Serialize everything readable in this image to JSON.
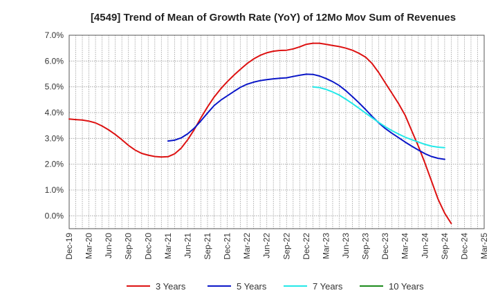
{
  "chart_data": {
    "type": "line",
    "title": "[4549]  Trend of Mean of Growth Rate (YoY) of 12Mo Mov Sum of Revenues",
    "xlabel": "",
    "ylabel": "",
    "ylim": [
      -0.5,
      7.0
    ],
    "yticks": [
      0.0,
      1.0,
      2.0,
      3.0,
      4.0,
      5.0,
      6.0,
      7.0
    ],
    "ytick_labels": [
      "0.0%",
      "1.0%",
      "2.0%",
      "3.0%",
      "4.0%",
      "5.0%",
      "6.0%",
      "7.0%"
    ],
    "x_range": [
      0,
      63
    ],
    "x_tick_positions": [
      0,
      3,
      6,
      9,
      12,
      15,
      18,
      21,
      24,
      27,
      30,
      33,
      36,
      39,
      42,
      45,
      48,
      51,
      54,
      57,
      60,
      63
    ],
    "x_tick_labels": [
      "Dec-19",
      "Mar-20",
      "Jun-20",
      "Sep-20",
      "Dec-20",
      "Mar-21",
      "Jun-21",
      "Sep-21",
      "Dec-21",
      "Mar-22",
      "Jun-22",
      "Sep-22",
      "Dec-22",
      "Mar-23",
      "Jun-23",
      "Sep-23",
      "Dec-23",
      "Mar-24",
      "Jun-24",
      "Sep-24",
      "Dec-24",
      "Mar-25"
    ],
    "grid": true,
    "legend_position": "bottom",
    "series": [
      {
        "name": "3 Years",
        "color": "#dd1111",
        "points": [
          [
            0,
            3.75
          ],
          [
            1,
            3.73
          ],
          [
            2,
            3.71
          ],
          [
            3,
            3.67
          ],
          [
            4,
            3.6
          ],
          [
            5,
            3.48
          ],
          [
            6,
            3.33
          ],
          [
            7,
            3.15
          ],
          [
            8,
            2.95
          ],
          [
            9,
            2.73
          ],
          [
            10,
            2.55
          ],
          [
            11,
            2.42
          ],
          [
            12,
            2.35
          ],
          [
            13,
            2.3
          ],
          [
            14,
            2.28
          ],
          [
            15,
            2.29
          ],
          [
            16,
            2.4
          ],
          [
            17,
            2.62
          ],
          [
            18,
            2.95
          ],
          [
            19,
            3.35
          ],
          [
            20,
            3.8
          ],
          [
            21,
            4.22
          ],
          [
            22,
            4.6
          ],
          [
            23,
            4.92
          ],
          [
            24,
            5.2
          ],
          [
            25,
            5.45
          ],
          [
            26,
            5.68
          ],
          [
            27,
            5.9
          ],
          [
            28,
            6.08
          ],
          [
            29,
            6.22
          ],
          [
            30,
            6.32
          ],
          [
            31,
            6.38
          ],
          [
            32,
            6.41
          ],
          [
            33,
            6.42
          ],
          [
            34,
            6.47
          ],
          [
            35,
            6.55
          ],
          [
            36,
            6.65
          ],
          [
            37,
            6.69
          ],
          [
            38,
            6.69
          ],
          [
            39,
            6.65
          ],
          [
            40,
            6.6
          ],
          [
            41,
            6.56
          ],
          [
            42,
            6.5
          ],
          [
            43,
            6.42
          ],
          [
            44,
            6.3
          ],
          [
            45,
            6.15
          ],
          [
            46,
            5.9
          ],
          [
            47,
            5.55
          ],
          [
            48,
            5.15
          ],
          [
            49,
            4.75
          ],
          [
            50,
            4.35
          ],
          [
            51,
            3.9
          ],
          [
            52,
            3.3
          ],
          [
            53,
            2.7
          ],
          [
            54,
            2.05
          ],
          [
            55,
            1.35
          ],
          [
            56,
            0.65
          ],
          [
            57,
            0.1
          ],
          [
            58,
            -0.3
          ]
        ]
      },
      {
        "name": "5 Years",
        "color": "#0a16c8",
        "points": [
          [
            15,
            2.9
          ],
          [
            16,
            2.93
          ],
          [
            17,
            3.02
          ],
          [
            18,
            3.18
          ],
          [
            19,
            3.4
          ],
          [
            20,
            3.68
          ],
          [
            21,
            3.98
          ],
          [
            22,
            4.27
          ],
          [
            23,
            4.48
          ],
          [
            24,
            4.65
          ],
          [
            25,
            4.82
          ],
          [
            26,
            4.98
          ],
          [
            27,
            5.1
          ],
          [
            28,
            5.18
          ],
          [
            29,
            5.24
          ],
          [
            30,
            5.28
          ],
          [
            31,
            5.31
          ],
          [
            32,
            5.33
          ],
          [
            33,
            5.35
          ],
          [
            34,
            5.4
          ],
          [
            35,
            5.45
          ],
          [
            36,
            5.49
          ],
          [
            37,
            5.48
          ],
          [
            38,
            5.42
          ],
          [
            39,
            5.32
          ],
          [
            40,
            5.2
          ],
          [
            41,
            5.05
          ],
          [
            42,
            4.85
          ],
          [
            43,
            4.62
          ],
          [
            44,
            4.38
          ],
          [
            45,
            4.12
          ],
          [
            46,
            3.85
          ],
          [
            47,
            3.6
          ],
          [
            48,
            3.38
          ],
          [
            49,
            3.2
          ],
          [
            50,
            3.03
          ],
          [
            51,
            2.86
          ],
          [
            52,
            2.7
          ],
          [
            53,
            2.55
          ],
          [
            54,
            2.41
          ],
          [
            55,
            2.3
          ],
          [
            56,
            2.23
          ],
          [
            57,
            2.19
          ]
        ]
      },
      {
        "name": "7 Years",
        "color": "#22e8e8",
        "points": [
          [
            37,
            5.0
          ],
          [
            38,
            4.97
          ],
          [
            39,
            4.9
          ],
          [
            40,
            4.8
          ],
          [
            41,
            4.68
          ],
          [
            42,
            4.52
          ],
          [
            43,
            4.35
          ],
          [
            44,
            4.17
          ],
          [
            45,
            3.98
          ],
          [
            46,
            3.8
          ],
          [
            47,
            3.62
          ],
          [
            48,
            3.45
          ],
          [
            49,
            3.3
          ],
          [
            50,
            3.17
          ],
          [
            51,
            3.05
          ],
          [
            52,
            2.95
          ],
          [
            53,
            2.86
          ],
          [
            54,
            2.77
          ],
          [
            55,
            2.7
          ],
          [
            56,
            2.66
          ],
          [
            57,
            2.64
          ]
        ]
      },
      {
        "name": "10 Years",
        "color": "#1a8a1a",
        "points": []
      }
    ]
  }
}
